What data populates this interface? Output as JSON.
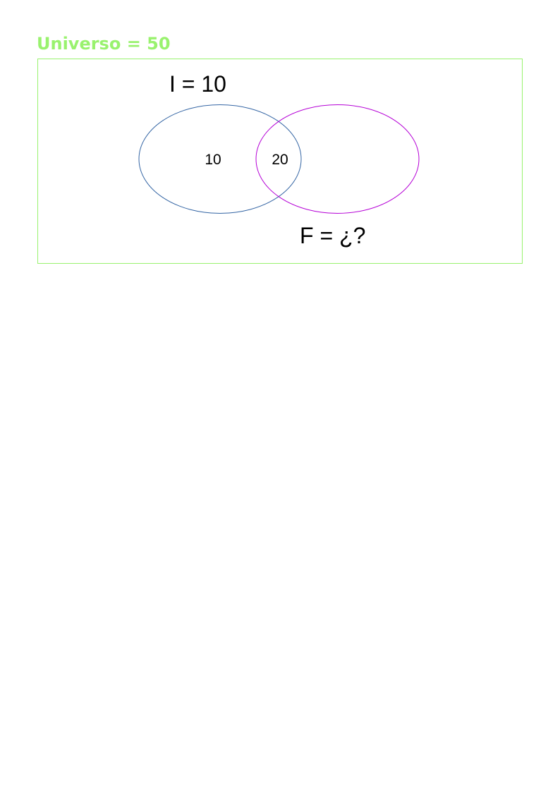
{
  "universe": {
    "title": "Universo = 50",
    "color": "#99f26e"
  },
  "sets": [
    {
      "id": "I",
      "label": "I = 10",
      "color": "#3465a4"
    },
    {
      "id": "F",
      "label": "F = ¿?",
      "color": "#b500d6"
    }
  ],
  "regions": {
    "only_i": "10",
    "intersection": "20"
  }
}
